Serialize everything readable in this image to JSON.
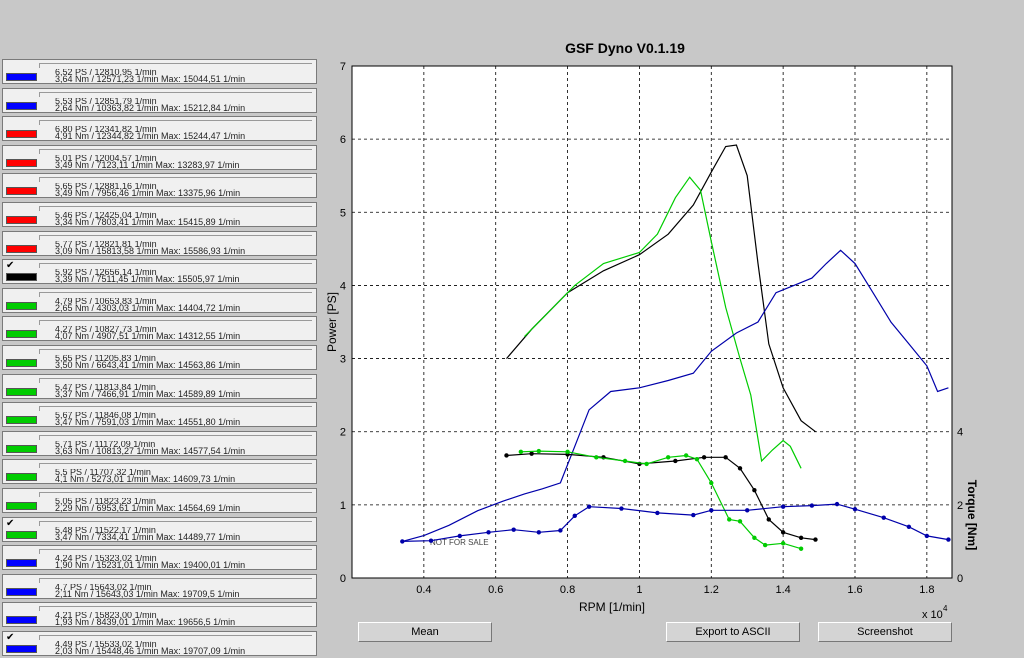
{
  "window": {
    "title": "GSF Dyno V0.1.19"
  },
  "runs": [
    {
      "color": "#0000ff",
      "checked": false,
      "line1": "6,52 PS  / 12810,95 1/min",
      "line2": "3,64 Nm  / 12571,23 1/min      Max: 15044,51 1/min"
    },
    {
      "color": "#0000ff",
      "checked": false,
      "line1": "5,53 PS  / 12851,79 1/min",
      "line2": "2,64 Nm  / 10363,82 1/min      Max: 15212,84 1/min"
    },
    {
      "color": "#ff0000",
      "checked": false,
      "line1": "6,80 PS  / 12341,82 1/min",
      "line2": "4,91 Nm  / 12344,82 1/min      Max: 15244,47 1/min"
    },
    {
      "color": "#ff0000",
      "checked": false,
      "line1": "5,01 PS  / 12004,57 1/min",
      "line2": "3,49 Nm  / 7123,11 1/min      Max: 13283,97 1/min"
    },
    {
      "color": "#ff0000",
      "checked": false,
      "line1": "5,65 PS  / 12881,16 1/min",
      "line2": "3,49 Nm  / 7956,46 1/min      Max: 13375,96 1/min"
    },
    {
      "color": "#ff0000",
      "checked": false,
      "line1": "5,46 PS  / 12425,04 1/min",
      "line2": "3,34 Nm  / 7803,41 1/min      Max: 15415,89 1/min"
    },
    {
      "color": "#ff0000",
      "checked": false,
      "line1": "5,77 PS  / 12821,81 1/min",
      "line2": "3,09 Nm  / 15813,58 1/min      Max: 15586,93 1/min"
    },
    {
      "color": "#000000",
      "checked": true,
      "line1": "5,92 PS  / 12656,14 1/min",
      "line2": "3,39 Nm  / 7511,45 1/min      Max: 15505,97 1/min"
    },
    {
      "color": "#00cc00",
      "checked": false,
      "line1": "4,79 PS  / 10653,83 1/min",
      "line2": "2,65 Nm  / 4303,03 1/min      Max: 14404,72 1/min"
    },
    {
      "color": "#00cc00",
      "checked": false,
      "line1": "4,27 PS  / 10827,73 1/min",
      "line2": "4,07 Nm  / 4907,51 1/min      Max: 14312,55 1/min"
    },
    {
      "color": "#00cc00",
      "checked": false,
      "line1": "5,65 PS  / 11205,83 1/min",
      "line2": "3,50 Nm  / 6643,41 1/min      Max: 14563,86 1/min"
    },
    {
      "color": "#00cc00",
      "checked": false,
      "line1": "5,47 PS  / 11813,84 1/min",
      "line2": "3,37 Nm  / 7466,91 1/min      Max: 14589,89 1/min"
    },
    {
      "color": "#00cc00",
      "checked": false,
      "line1": "5,67 PS  / 11846,08 1/min",
      "line2": "3,47 Nm  / 7591,03 1/min      Max: 14551,80 1/min"
    },
    {
      "color": "#00cc00",
      "checked": false,
      "line1": "5,71 PS  / 11172,09 1/min",
      "line2": "3,63 Nm  / 10813,27 1/min      Max: 14577,54 1/min"
    },
    {
      "color": "#00cc00",
      "checked": false,
      "line1": "5,5 PS  / 11707,32 1/min",
      "line2": "4,1 Nm  / 5273,01 1/min      Max: 14609,73 1/min"
    },
    {
      "color": "#00cc00",
      "checked": false,
      "line1": "5,05 PS  / 11823,23 1/min",
      "line2": "2,29 Nm  / 6953,61 1/min      Max: 14564,69 1/min"
    },
    {
      "color": "#00cc00",
      "checked": true,
      "line1": "5,48 PS  / 11522,17 1/min",
      "line2": "3,47 Nm  / 7334,41 1/min      Max: 14489,77 1/min"
    },
    {
      "color": "#0000ff",
      "checked": false,
      "line1": "4,24 PS  / 15323,02 1/min",
      "line2": "1,90 Nm  / 15231,01 1/min      Max: 19400,01 1/min"
    },
    {
      "color": "#0000ff",
      "checked": false,
      "line1": "4,7 PS  / 15643,02 1/min",
      "line2": "2,11 Nm  / 15643,03 1/min      Max: 19709,5 1/min"
    },
    {
      "color": "#0000ff",
      "checked": false,
      "line1": "4,21 PS  / 15823,00 1/min",
      "line2": "1,93 Nm  / 8439,01 1/min      Max: 19656,5 1/min"
    },
    {
      "color": "#0000ff",
      "checked": true,
      "line1": "4,49 PS  / 15533,02 1/min",
      "line2": "2,03 Nm  / 15448,46 1/min      Max: 19707,09 1/min"
    }
  ],
  "chart_data": {
    "type": "line",
    "title": "GSF Dyno V0.1.19",
    "xlabel": "RPM [1/min]",
    "x_multiplier_label": "x 10",
    "x_multiplier_exp": "4",
    "ylabel": "Power [PS]",
    "ylabel_right": "Torque [Nm]",
    "xlim": [
      0.2,
      1.87
    ],
    "ylim": [
      0,
      7
    ],
    "ylim_right": [
      0,
      14
    ],
    "x_ticks": [
      "0.4",
      "0.6",
      "0.8",
      "1",
      "1.2",
      "1.4",
      "1.6",
      "1.8"
    ],
    "y_ticks": [
      "0",
      "1",
      "2",
      "3",
      "4",
      "5",
      "6",
      "7"
    ],
    "y_ticks_right": [
      "0",
      "2",
      "4"
    ],
    "watermark": "NOT FOR SALE",
    "grid": true,
    "series": [
      {
        "color": "#000000",
        "kind": "power",
        "points": [
          [
            0.63,
            3.0
          ],
          [
            0.7,
            3.4
          ],
          [
            0.8,
            3.9
          ],
          [
            0.9,
            4.2
          ],
          [
            1.0,
            4.42
          ],
          [
            1.08,
            4.7
          ],
          [
            1.15,
            5.1
          ],
          [
            1.2,
            5.55
          ],
          [
            1.24,
            5.9
          ],
          [
            1.27,
            5.92
          ],
          [
            1.3,
            5.5
          ],
          [
            1.33,
            4.3
          ],
          [
            1.36,
            3.2
          ],
          [
            1.4,
            2.6
          ],
          [
            1.45,
            2.15
          ],
          [
            1.49,
            2.0
          ]
        ]
      },
      {
        "color": "#00cc00",
        "kind": "power",
        "points": [
          [
            0.68,
            3.3
          ],
          [
            0.75,
            3.65
          ],
          [
            0.82,
            4.0
          ],
          [
            0.9,
            4.3
          ],
          [
            1.0,
            4.45
          ],
          [
            1.05,
            4.7
          ],
          [
            1.1,
            5.2
          ],
          [
            1.14,
            5.48
          ],
          [
            1.17,
            5.3
          ],
          [
            1.2,
            4.6
          ],
          [
            1.24,
            3.7
          ],
          [
            1.28,
            3.0
          ],
          [
            1.31,
            2.5
          ],
          [
            1.34,
            1.6
          ],
          [
            1.37,
            1.75
          ],
          [
            1.4,
            1.88
          ],
          [
            1.42,
            1.8
          ],
          [
            1.45,
            1.5
          ]
        ]
      },
      {
        "color": "#0000aa",
        "kind": "power",
        "points": [
          [
            0.34,
            0.5
          ],
          [
            0.4,
            0.58
          ],
          [
            0.47,
            0.72
          ],
          [
            0.55,
            0.92
          ],
          [
            0.62,
            1.05
          ],
          [
            0.68,
            1.15
          ],
          [
            0.73,
            1.22
          ],
          [
            0.78,
            1.3
          ],
          [
            0.82,
            1.8
          ],
          [
            0.86,
            2.3
          ],
          [
            0.92,
            2.55
          ],
          [
            1.0,
            2.6
          ],
          [
            1.08,
            2.7
          ],
          [
            1.15,
            2.8
          ],
          [
            1.2,
            3.1
          ],
          [
            1.27,
            3.35
          ],
          [
            1.33,
            3.5
          ],
          [
            1.38,
            3.9
          ],
          [
            1.43,
            4.0
          ],
          [
            1.48,
            4.1
          ],
          [
            1.52,
            4.3
          ],
          [
            1.56,
            4.48
          ],
          [
            1.6,
            4.3
          ],
          [
            1.65,
            3.9
          ],
          [
            1.7,
            3.5
          ],
          [
            1.75,
            3.2
          ],
          [
            1.8,
            2.9
          ],
          [
            1.83,
            2.55
          ],
          [
            1.86,
            2.6
          ]
        ]
      },
      {
        "color": "#000000",
        "kind": "torque",
        "markers": true,
        "points": [
          [
            0.63,
            3.35
          ],
          [
            0.7,
            3.4
          ],
          [
            0.8,
            3.38
          ],
          [
            0.9,
            3.3
          ],
          [
            1.0,
            3.12
          ],
          [
            1.1,
            3.2
          ],
          [
            1.18,
            3.3
          ],
          [
            1.24,
            3.3
          ],
          [
            1.28,
            3.0
          ],
          [
            1.32,
            2.4
          ],
          [
            1.36,
            1.6
          ],
          [
            1.4,
            1.25
          ],
          [
            1.45,
            1.1
          ],
          [
            1.49,
            1.05
          ]
        ]
      },
      {
        "color": "#00cc00",
        "kind": "torque",
        "markers": true,
        "points": [
          [
            0.67,
            3.45
          ],
          [
            0.72,
            3.47
          ],
          [
            0.8,
            3.45
          ],
          [
            0.88,
            3.3
          ],
          [
            0.96,
            3.2
          ],
          [
            1.02,
            3.12
          ],
          [
            1.08,
            3.3
          ],
          [
            1.13,
            3.35
          ],
          [
            1.16,
            3.25
          ],
          [
            1.2,
            2.6
          ],
          [
            1.25,
            1.6
          ],
          [
            1.28,
            1.55
          ],
          [
            1.32,
            1.1
          ],
          [
            1.35,
            0.9
          ],
          [
            1.4,
            0.95
          ],
          [
            1.45,
            0.8
          ]
        ]
      },
      {
        "color": "#0000aa",
        "kind": "torque",
        "markers": true,
        "points": [
          [
            0.34,
            1.0
          ],
          [
            0.42,
            1.02
          ],
          [
            0.5,
            1.15
          ],
          [
            0.58,
            1.25
          ],
          [
            0.65,
            1.32
          ],
          [
            0.72,
            1.25
          ],
          [
            0.78,
            1.3
          ],
          [
            0.82,
            1.7
          ],
          [
            0.86,
            1.95
          ],
          [
            0.95,
            1.9
          ],
          [
            1.05,
            1.78
          ],
          [
            1.15,
            1.72
          ],
          [
            1.2,
            1.85
          ],
          [
            1.3,
            1.85
          ],
          [
            1.4,
            1.95
          ],
          [
            1.48,
            1.98
          ],
          [
            1.55,
            2.02
          ],
          [
            1.6,
            1.88
          ],
          [
            1.68,
            1.65
          ],
          [
            1.75,
            1.4
          ],
          [
            1.8,
            1.15
          ],
          [
            1.86,
            1.05
          ]
        ]
      }
    ]
  },
  "buttons": {
    "mean": "Mean",
    "export": "Export to ASCII",
    "screenshot": "Screenshot"
  }
}
